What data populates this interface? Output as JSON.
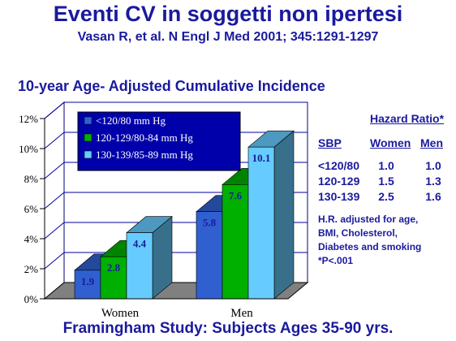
{
  "header": {
    "title": "Eventi CV in soggetti non ipertesi",
    "citation": "Vasan R, et al. N Engl J Med 2001; 345:1291-1297"
  },
  "footer": {
    "text": "Framingham Study: Subjects Ages 35-90 yrs."
  },
  "chart_data": {
    "type": "bar",
    "title": "10-year Age- Adjusted Cumulative Incidence",
    "categories": [
      "Women",
      "Men"
    ],
    "series": [
      {
        "name": "<120/80 mm Hg",
        "values": [
          1.9,
          5.8
        ],
        "color": "#3060d0"
      },
      {
        "name": "120-129/80-84 mm Hg",
        "values": [
          2.8,
          7.6
        ],
        "color": "#00b000"
      },
      {
        "name": "130-139/85-89 mm Hg",
        "values": [
          4.4,
          10.1
        ],
        "color": "#66ccff"
      }
    ],
    "y_ticks": [
      "0%",
      "2%",
      "4%",
      "6%",
      "8%",
      "10%",
      "12%"
    ],
    "ylim": [
      0,
      12
    ],
    "data_labels": [
      "1.9",
      "5.8",
      "2.8",
      "7.6",
      "4.4",
      "10.1"
    ],
    "grid": true,
    "legend_position": "top-left, inside plot",
    "colors": {
      "floor": "#808080",
      "wall": "#ffffff",
      "grid": "#0000a0"
    }
  },
  "hazard_ratio": {
    "title": "Hazard Ratio*",
    "col_sbp": "SBP",
    "col_women": "Women",
    "col_men": "Men",
    "rows": [
      {
        "sbp": "<120/80",
        "women": "1.0",
        "men": "1.0"
      },
      {
        "sbp": "120-129",
        "women": "1.5",
        "men": "1.3"
      },
      {
        "sbp": "130-139",
        "women": "2.5",
        "men": "1.6"
      }
    ],
    "note_lines": [
      "H.R. adjusted for age,",
      "BMI, Cholesterol,",
      "Diabetes and smoking",
      "*P<.001"
    ]
  }
}
